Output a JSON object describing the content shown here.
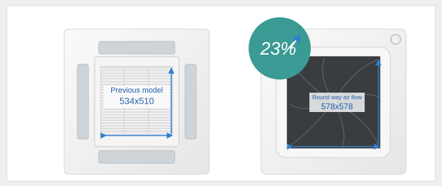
{
  "badge": "23%",
  "previous_model": {
    "label": "Previous model",
    "size": "534x510"
  },
  "new_model": {
    "label": "Round way air flow",
    "size": "578x578"
  }
}
